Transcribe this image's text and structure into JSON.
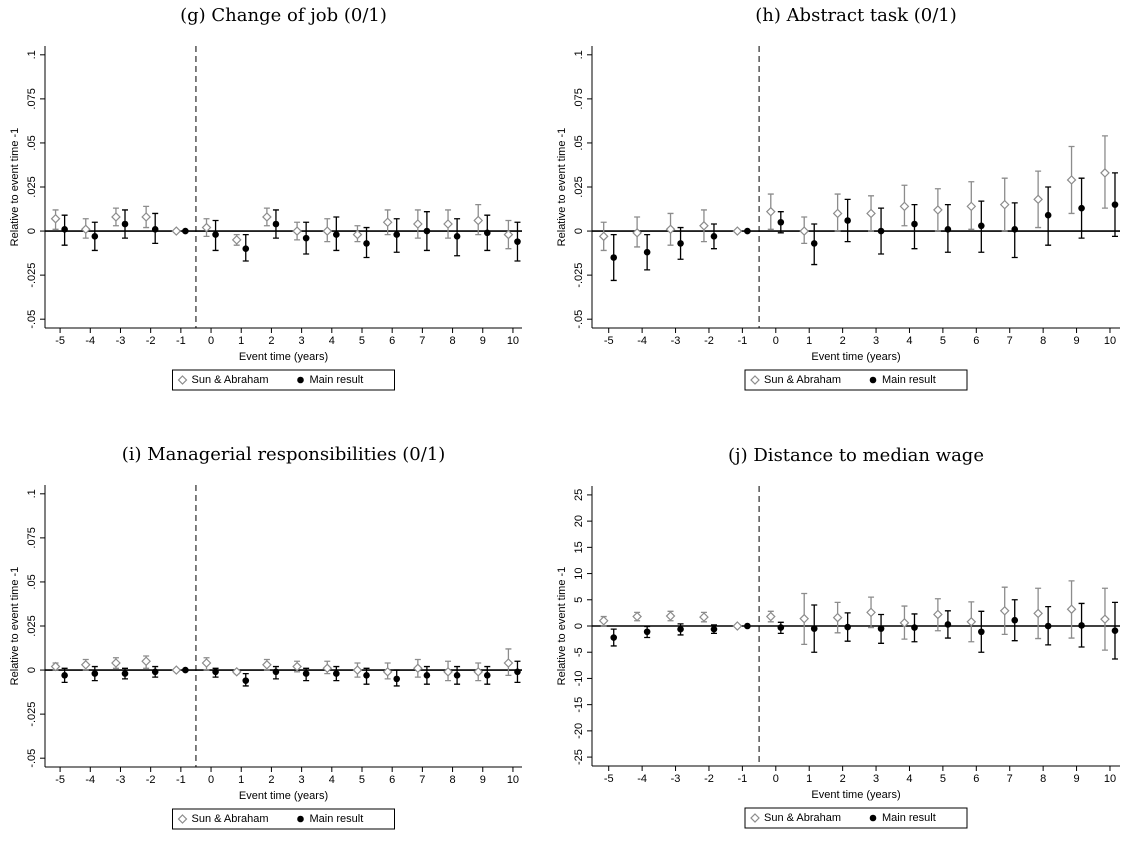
{
  "chart_data": [
    {
      "type": "errorbar",
      "title": "(g) Change of job (0/1)",
      "ylabel": "Relative to event time -1",
      "xlabel": "Event time (years)",
      "x": [
        -5,
        -4,
        -3,
        -2,
        -1,
        0,
        1,
        2,
        3,
        4,
        5,
        6,
        7,
        8,
        9,
        10
      ],
      "series": [
        {
          "name": "Sun & Abraham",
          "color": "#8c8c8c",
          "marker": "diamond",
          "values": [
            0.007,
            0.001,
            0.008,
            0.008,
            0,
            0.002,
            -0.005,
            0.008,
            0,
            0,
            -0.002,
            0.005,
            0.004,
            0.004,
            0.006,
            -0.002
          ],
          "lower": [
            0.001,
            -0.004,
            0.003,
            0.002,
            0,
            -0.003,
            -0.008,
            0.003,
            -0.005,
            -0.006,
            -0.006,
            -0.002,
            -0.004,
            -0.004,
            -0.002,
            -0.01
          ],
          "upper": [
            0.012,
            0.007,
            0.013,
            0.014,
            0,
            0.007,
            -0.002,
            0.013,
            0.005,
            0.007,
            0.003,
            0.012,
            0.012,
            0.012,
            0.015,
            0.006
          ]
        },
        {
          "name": "Main result",
          "color": "#000000",
          "marker": "circle",
          "values": [
            0.001,
            -0.003,
            0.004,
            0.001,
            0,
            -0.002,
            -0.01,
            0.004,
            -0.004,
            -0.002,
            -0.007,
            -0.002,
            0,
            -0.003,
            -0.001,
            -0.006
          ],
          "lower": [
            -0.008,
            -0.011,
            -0.004,
            -0.007,
            0,
            -0.011,
            -0.017,
            -0.004,
            -0.013,
            -0.011,
            -0.015,
            -0.012,
            -0.011,
            -0.014,
            -0.011,
            -0.017
          ],
          "upper": [
            0.009,
            0.005,
            0.012,
            0.01,
            0,
            0.006,
            -0.002,
            0.012,
            0.005,
            0.008,
            0.002,
            0.007,
            0.011,
            0.007,
            0.009,
            0.005
          ]
        }
      ],
      "xlim": [
        -5.5,
        10.3
      ],
      "xticks": [
        -5,
        -4,
        -3,
        -2,
        -1,
        0,
        1,
        2,
        3,
        4,
        5,
        6,
        7,
        8,
        9,
        10
      ],
      "ylim": [
        -0.055,
        0.105
      ],
      "yticks": [
        {
          "value": -0.05,
          "label": "-.05"
        },
        {
          "value": -0.025,
          "label": "-.025"
        },
        0,
        {
          "value": 0.025,
          "label": ".025"
        },
        {
          "value": 0.05,
          "label": ".05"
        },
        {
          "value": 0.075,
          "label": ".075"
        },
        {
          "value": 0.1,
          "label": ".1"
        }
      ],
      "hline": 0,
      "vline": -0.5
    },
    {
      "type": "errorbar",
      "title": "(h) Abstract task (0/1)",
      "ylabel": "Relative to event time -1",
      "xlabel": "Event time (years)",
      "x": [
        -5,
        -4,
        -3,
        -2,
        -1,
        0,
        1,
        2,
        3,
        4,
        5,
        6,
        7,
        8,
        9,
        10
      ],
      "series": [
        {
          "name": "Sun & Abraham",
          "color": "#8c8c8c",
          "marker": "diamond",
          "values": [
            -0.003,
            -0.001,
            0.001,
            0.003,
            0,
            0.011,
            0,
            0.01,
            0.01,
            0.014,
            0.012,
            0.014,
            0.015,
            0.018,
            0.029,
            0.033
          ],
          "lower": [
            -0.011,
            -0.009,
            -0.008,
            -0.006,
            0,
            0.001,
            -0.007,
            0,
            0,
            0.003,
            0,
            0.001,
            0,
            0.002,
            0.01,
            0.013
          ],
          "upper": [
            0.005,
            0.008,
            0.01,
            0.012,
            0,
            0.021,
            0.008,
            0.021,
            0.02,
            0.026,
            0.024,
            0.028,
            0.03,
            0.034,
            0.048,
            0.054
          ]
        },
        {
          "name": "Main result",
          "color": "#000000",
          "marker": "circle",
          "values": [
            -0.015,
            -0.012,
            -0.007,
            -0.003,
            0,
            0.005,
            -0.007,
            0.006,
            0,
            0.004,
            0.001,
            0.003,
            0.001,
            0.009,
            0.013,
            0.015
          ],
          "lower": [
            -0.028,
            -0.022,
            -0.016,
            -0.01,
            0,
            -0.001,
            -0.019,
            -0.006,
            -0.013,
            -0.01,
            -0.012,
            -0.012,
            -0.015,
            -0.008,
            -0.004,
            -0.003
          ],
          "upper": [
            -0.002,
            -0.002,
            0.002,
            0.004,
            0,
            0.011,
            0.004,
            0.018,
            0.013,
            0.015,
            0.015,
            0.017,
            0.016,
            0.025,
            0.03,
            0.033
          ]
        }
      ],
      "xlim": [
        -5.5,
        10.3
      ],
      "xticks": [
        -5,
        -4,
        -3,
        -2,
        -1,
        0,
        1,
        2,
        3,
        4,
        5,
        6,
        7,
        8,
        9,
        10
      ],
      "ylim": [
        -0.055,
        0.105
      ],
      "yticks": [
        {
          "value": -0.05,
          "label": "-.05"
        },
        {
          "value": -0.025,
          "label": "-.025"
        },
        0,
        {
          "value": 0.025,
          "label": ".025"
        },
        {
          "value": 0.05,
          "label": ".05"
        },
        {
          "value": 0.075,
          "label": ".075"
        },
        {
          "value": 0.1,
          "label": ".1"
        }
      ],
      "hline": 0,
      "vline": -0.5
    },
    {
      "type": "errorbar",
      "title": "(i) Managerial responsibilities (0/1)",
      "ylabel": "Relative to event time -1",
      "xlabel": "Event time (years)",
      "x": [
        -5,
        -4,
        -3,
        -2,
        -1,
        0,
        1,
        2,
        3,
        4,
        5,
        6,
        7,
        8,
        9,
        10
      ],
      "series": [
        {
          "name": "Sun & Abraham",
          "color": "#8c8c8c",
          "marker": "diamond",
          "values": [
            0.002,
            0.003,
            0.004,
            0.005,
            0,
            0.004,
            -0.001,
            0.003,
            0.002,
            0.001,
            0,
            -0.001,
            0.001,
            -0.001,
            -0.001,
            0.004
          ],
          "lower": [
            0,
            0,
            0.001,
            0.001,
            0,
            0,
            -0.002,
            0,
            -0.001,
            -0.002,
            -0.004,
            -0.005,
            -0.004,
            -0.006,
            -0.006,
            -0.003
          ],
          "upper": [
            0.004,
            0.006,
            0.007,
            0.008,
            0,
            0.007,
            0,
            0.006,
            0.005,
            0.005,
            0.004,
            0.004,
            0.006,
            0.005,
            0.004,
            0.012
          ]
        },
        {
          "name": "Main result",
          "color": "#000000",
          "marker": "circle",
          "values": [
            -0.003,
            -0.002,
            -0.002,
            -0.001,
            0,
            -0.001,
            -0.006,
            -0.001,
            -0.002,
            -0.002,
            -0.003,
            -0.005,
            -0.003,
            -0.003,
            -0.003,
            -0.001
          ],
          "lower": [
            -0.007,
            -0.006,
            -0.005,
            -0.004,
            0,
            -0.004,
            -0.009,
            -0.005,
            -0.006,
            -0.006,
            -0.008,
            -0.009,
            -0.008,
            -0.008,
            -0.008,
            -0.007
          ],
          "upper": [
            0.001,
            0.002,
            0.001,
            0.002,
            0,
            0.001,
            -0.002,
            0.002,
            0.001,
            0.002,
            0.001,
            0,
            0.002,
            0.002,
            0.002,
            0.005
          ]
        }
      ],
      "xlim": [
        -5.5,
        10.3
      ],
      "xticks": [
        -5,
        -4,
        -3,
        -2,
        -1,
        0,
        1,
        2,
        3,
        4,
        5,
        6,
        7,
        8,
        9,
        10
      ],
      "ylim": [
        -0.055,
        0.105
      ],
      "yticks": [
        {
          "value": -0.05,
          "label": "-.05"
        },
        {
          "value": -0.025,
          "label": "-.025"
        },
        0,
        {
          "value": 0.025,
          "label": ".025"
        },
        {
          "value": 0.05,
          "label": ".05"
        },
        {
          "value": 0.075,
          "label": ".075"
        },
        {
          "value": 0.1,
          "label": ".1"
        }
      ],
      "hline": 0,
      "vline": -0.5
    },
    {
      "type": "errorbar",
      "title": "(j) Distance to median wage",
      "ylabel": "Relative to event time -1",
      "xlabel": "Event time (years)",
      "x": [
        -5,
        -4,
        -3,
        -2,
        -1,
        0,
        1,
        2,
        3,
        4,
        5,
        6,
        7,
        8,
        9,
        10
      ],
      "series": [
        {
          "name": "Sun & Abraham",
          "color": "#8c8c8c",
          "marker": "diamond",
          "values": [
            1,
            1.8,
            1.9,
            1.7,
            0,
            1.8,
            1.4,
            1.6,
            2.6,
            0.6,
            2.2,
            0.8,
            2.9,
            2.4,
            3.2,
            1.3
          ],
          "lower": [
            0,
            1,
            1,
            0.8,
            0,
            0.8,
            -3.5,
            -1.3,
            -0.3,
            -2.5,
            -0.9,
            -3,
            -1.6,
            -2.4,
            -2.3,
            -4.6
          ],
          "upper": [
            1.8,
            2.6,
            2.8,
            2.6,
            0,
            2.8,
            6.2,
            4.5,
            5.5,
            3.8,
            5.2,
            4.6,
            7.4,
            7.2,
            8.6,
            7.2
          ]
        },
        {
          "name": "Main result",
          "color": "#000000",
          "marker": "circle",
          "values": [
            -2.2,
            -1.1,
            -0.6,
            -0.6,
            0,
            -0.3,
            -0.5,
            -0.2,
            -0.5,
            -0.3,
            0.3,
            -1.1,
            1.1,
            0,
            0.1,
            -0.9
          ],
          "lower": [
            -3.8,
            -2.2,
            -1.7,
            -1.4,
            0,
            -1.4,
            -5,
            -2.9,
            -3.3,
            -3,
            -2.3,
            -5,
            -2.8,
            -3.6,
            -4,
            -6.3
          ],
          "upper": [
            -0.6,
            -0.1,
            0.4,
            0.2,
            0,
            0.7,
            4,
            2.5,
            2.2,
            2.3,
            2.9,
            2.8,
            5,
            3.7,
            4.3,
            4.5
          ]
        }
      ],
      "xlim": [
        -5.5,
        10.3
      ],
      "xticks": [
        -5,
        -4,
        -3,
        -2,
        -1,
        0,
        1,
        2,
        3,
        4,
        5,
        6,
        7,
        8,
        9,
        10
      ],
      "ylim": [
        -26.7,
        26.7
      ],
      "yticks": [
        -25,
        -20,
        -15,
        -10,
        -5,
        0,
        5,
        10,
        15,
        20,
        25
      ],
      "hline": 0,
      "vline": -0.5
    }
  ]
}
